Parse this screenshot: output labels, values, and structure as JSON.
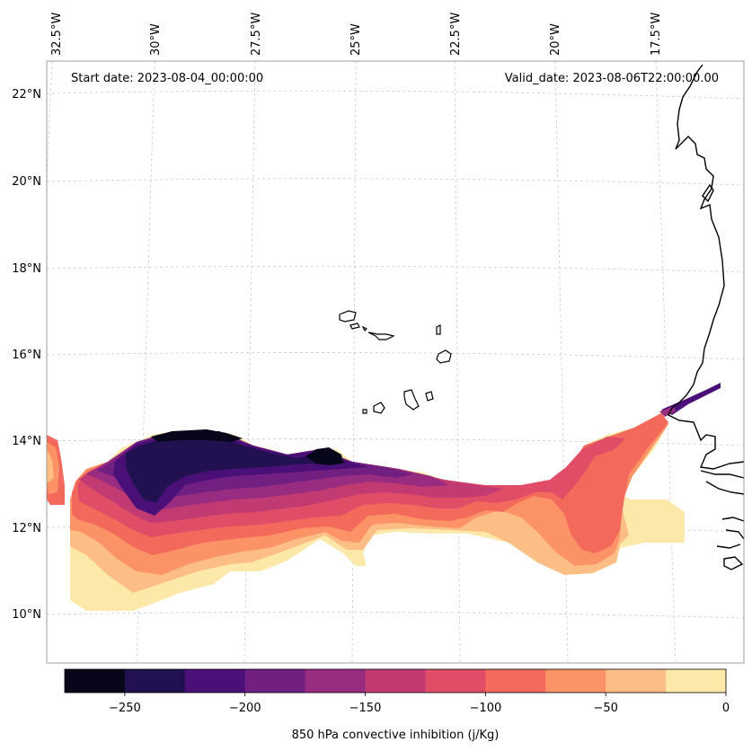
{
  "header": {
    "start_date": "Start date: 2023-08-04_00:00:00",
    "valid_date": "Valid_date: 2023-08-06T22:00:00.00"
  },
  "longitude_labels": [
    "32.5°W",
    "30°W",
    "27.5°W",
    "25°W",
    "22.5°W",
    "20°W",
    "17.5°W"
  ],
  "latitude_labels": [
    "22°N",
    "20°N",
    "18°N",
    "16°N",
    "14°N",
    "12°N",
    "10°N"
  ],
  "colorbar": {
    "label": "850 hPa convective inhibition (j/Kg)",
    "tick_labels": [
      "−250",
      "−200",
      "−150",
      "−100",
      "−50",
      "0"
    ],
    "bins": [
      {
        "range": [
          -275,
          -250
        ],
        "color": "#07061a"
      },
      {
        "range": [
          -250,
          -225
        ],
        "color": "#221150"
      },
      {
        "range": [
          -225,
          -200
        ],
        "color": "#4a1078"
      },
      {
        "range": [
          -200,
          -175
        ],
        "color": "#711f81"
      },
      {
        "range": [
          -175,
          -150
        ],
        "color": "#972c80"
      },
      {
        "range": [
          -150,
          -125
        ],
        "color": "#c13a72"
      },
      {
        "range": [
          -125,
          -100
        ],
        "color": "#e14d66"
      },
      {
        "range": [
          -100,
          -75
        ],
        "color": "#f3695c"
      },
      {
        "range": [
          -75,
          -50
        ],
        "color": "#fb9366"
      },
      {
        "range": [
          -50,
          -25
        ],
        "color": "#fdbe85"
      },
      {
        "range": [
          -25,
          0
        ],
        "color": "#fce8a8"
      }
    ]
  },
  "colors": {
    "gridline": "#cccccc",
    "coastline": "#000000"
  }
}
